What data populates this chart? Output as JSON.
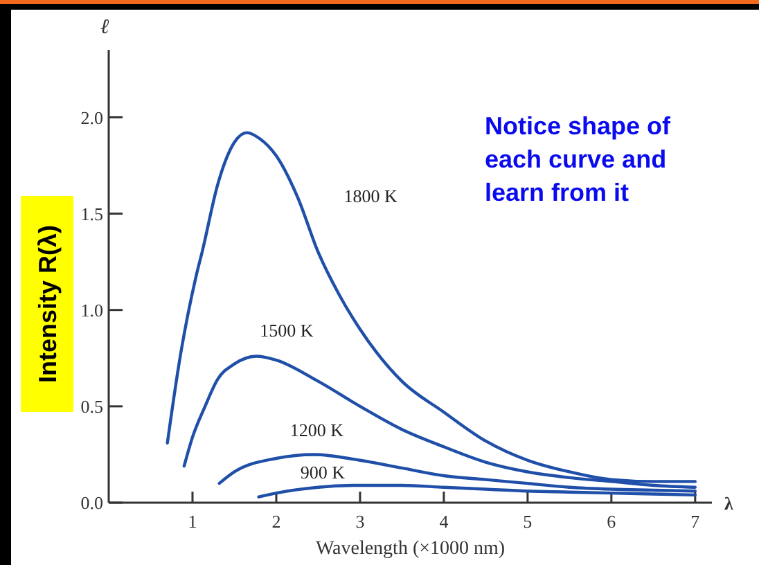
{
  "chart_data": {
    "type": "line",
    "xlabel": "Wavelength (×1000 nm)",
    "ylabel": "Intensity R(λ)",
    "xlim": [
      0,
      7.2
    ],
    "ylim": [
      0,
      2.35
    ],
    "xticks": [
      1,
      2,
      3,
      4,
      5,
      6,
      7
    ],
    "yticks": [
      {
        "value": 0,
        "label": "0.0"
      },
      {
        "value": 0.5,
        "label": "0.5"
      },
      {
        "value": 1,
        "label": "1.0"
      },
      {
        "value": 1.5,
        "label": "1.5"
      },
      {
        "value": 2,
        "label": "2.0"
      }
    ],
    "grid": false,
    "marker": "none",
    "line_style": "solid",
    "annotations": [
      "Notice shape of each curve and learn from it",
      "ℓ",
      "λ"
    ],
    "series": [
      {
        "name": "1800 K",
        "color": "#1f4fa8",
        "x": [
          0.7,
          0.85,
          1.04,
          1.12,
          1.3,
          1.5,
          1.65,
          1.8,
          2.0,
          2.26,
          2.5,
          2.75,
          3.0,
          3.5,
          4.0,
          4.5,
          5.0,
          5.5,
          6.0,
          6.5,
          7.0
        ],
        "values": [
          0.31,
          0.75,
          1.17,
          1.31,
          1.65,
          1.87,
          1.92,
          1.89,
          1.8,
          1.58,
          1.3,
          1.08,
          0.9,
          0.63,
          0.47,
          0.32,
          0.22,
          0.16,
          0.12,
          0.11,
          0.11
        ]
      },
      {
        "name": "1500 K",
        "color": "#1f4fa8",
        "x": [
          0.9,
          1.0,
          1.15,
          1.3,
          1.5,
          1.76,
          2.0,
          2.5,
          3.0,
          3.5,
          4.0,
          4.5,
          5.0,
          5.5,
          6.0,
          6.5,
          7.0
        ],
        "values": [
          0.19,
          0.34,
          0.5,
          0.64,
          0.72,
          0.76,
          0.74,
          0.63,
          0.5,
          0.38,
          0.29,
          0.21,
          0.16,
          0.13,
          0.11,
          0.09,
          0.08
        ]
      },
      {
        "name": "1200 K",
        "color": "#1f4fa8",
        "x": [
          1.32,
          1.5,
          2.0,
          2.45,
          3.0,
          3.5,
          4.0,
          4.5,
          5.0,
          5.5,
          6.0,
          6.5,
          7.0
        ],
        "values": [
          0.1,
          0.16,
          0.23,
          0.25,
          0.22,
          0.18,
          0.14,
          0.12,
          0.1,
          0.08,
          0.07,
          0.065,
          0.06
        ]
      },
      {
        "name": "900 K",
        "color": "#1f4fa8",
        "x": [
          1.79,
          2.0,
          2.5,
          3.0,
          3.5,
          4.0,
          4.5,
          5.0,
          5.5,
          6.0,
          6.5,
          7.0
        ],
        "values": [
          0.03,
          0.05,
          0.08,
          0.09,
          0.09,
          0.08,
          0.07,
          0.06,
          0.055,
          0.05,
          0.045,
          0.04
        ]
      }
    ]
  }
}
